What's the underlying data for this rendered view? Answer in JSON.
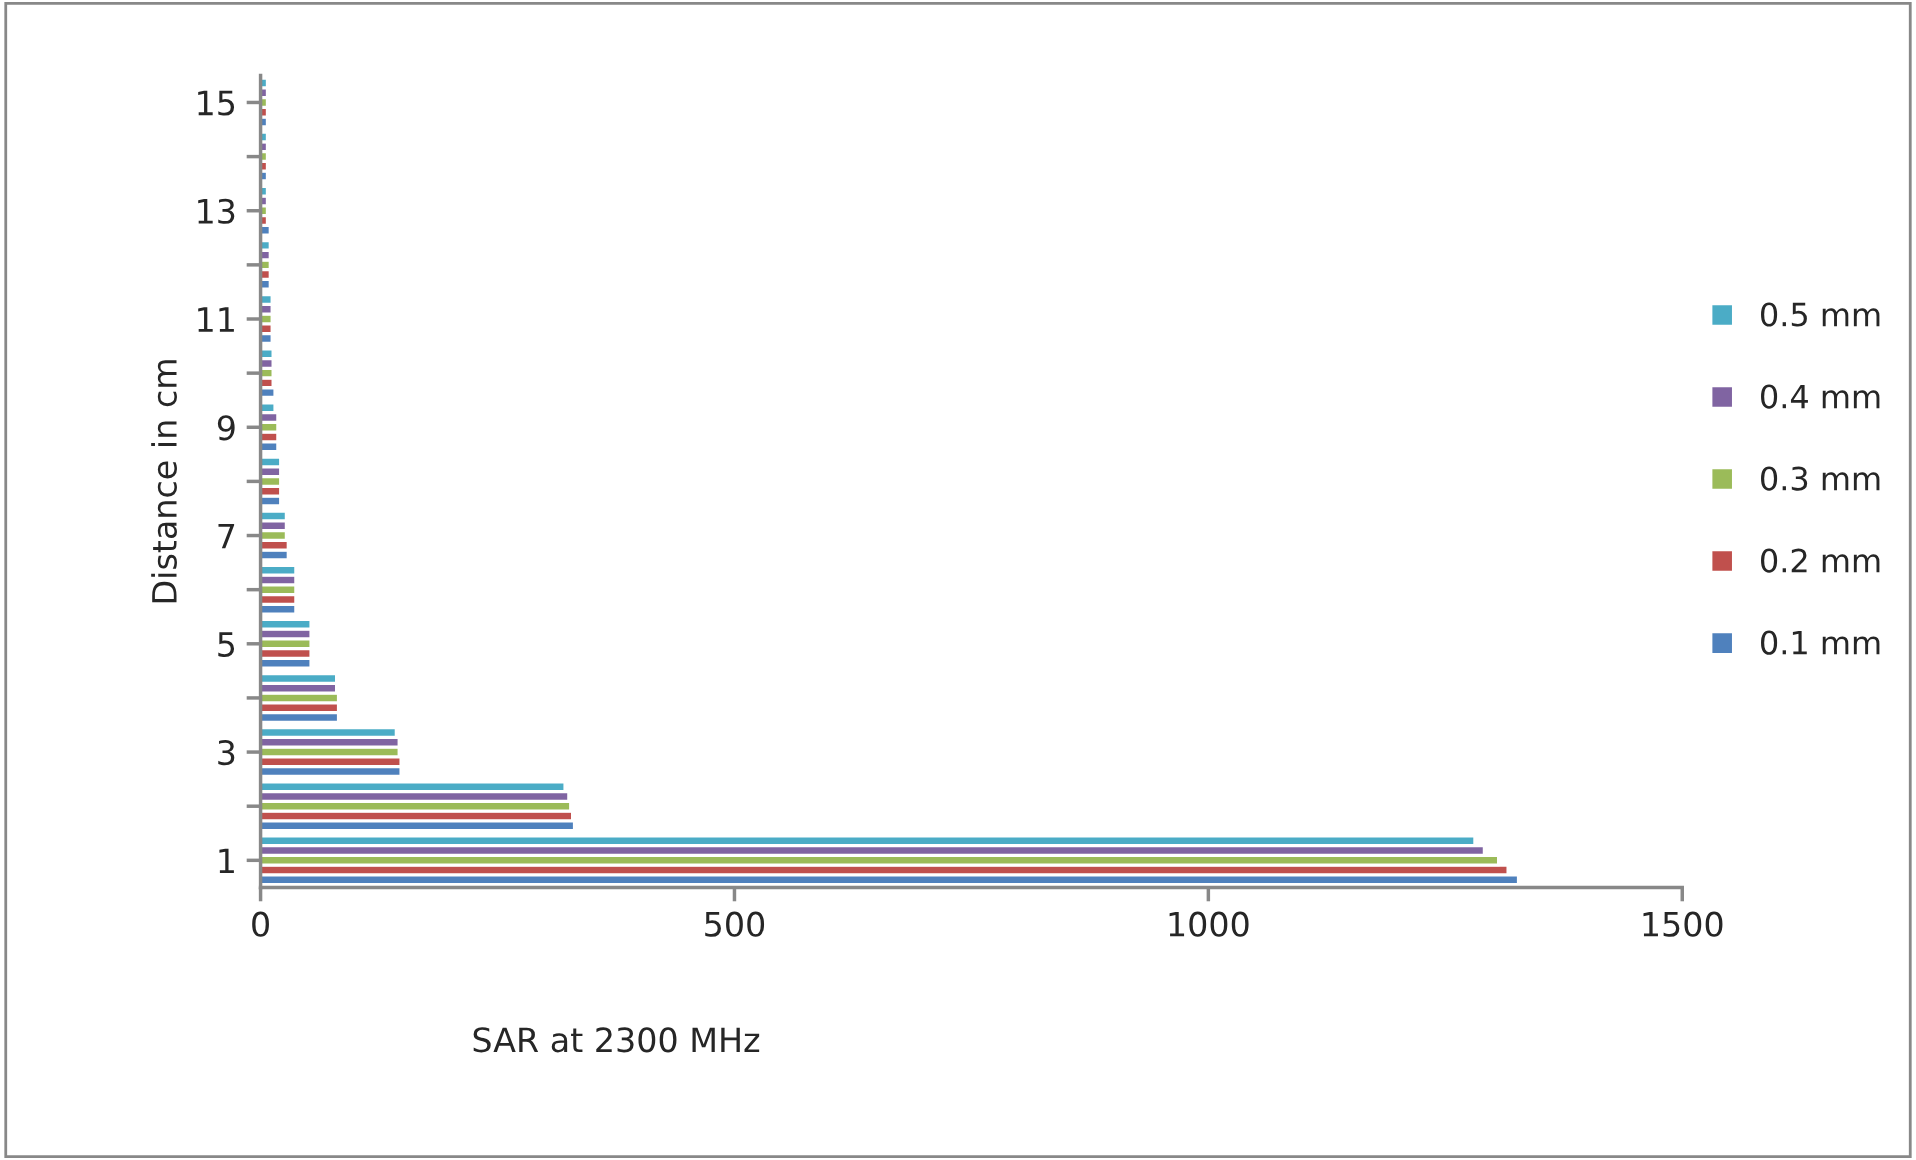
{
  "chart_data": {
    "type": "bar",
    "orientation": "horizontal",
    "xlabel": "SAR at 2300 MHz",
    "ylabel": "Distance in cm",
    "categories": [
      "15",
      null,
      "13",
      null,
      "11",
      null,
      "9",
      null,
      "7",
      null,
      "5",
      null,
      "3",
      null,
      "1"
    ],
    "series": [
      {
        "name": "0.1 mm",
        "color": "#4f81bd",
        "values": [
          7,
          7,
          10,
          10,
          12,
          15,
          18,
          21,
          29,
          37,
          53,
          82,
          148,
          331,
          1327
        ]
      },
      {
        "name": "0.2 mm",
        "color": "#c0504d",
        "values": [
          7,
          7,
          7,
          10,
          12,
          13,
          18,
          21,
          29,
          37,
          53,
          82,
          148,
          329,
          1316
        ]
      },
      {
        "name": "0.3 mm",
        "color": "#9bbb59",
        "values": [
          7,
          7,
          7,
          10,
          12,
          13,
          18,
          21,
          27,
          37,
          53,
          82,
          146,
          327,
          1306
        ]
      },
      {
        "name": "0.4 mm",
        "color": "#8064a2",
        "values": [
          7,
          7,
          7,
          10,
          12,
          13,
          18,
          21,
          27,
          37,
          53,
          80,
          146,
          325,
          1291
        ]
      },
      {
        "name": "0.5 mm",
        "color": "#4bacc6",
        "values": [
          7,
          7,
          7,
          10,
          12,
          13,
          15,
          21,
          27,
          37,
          53,
          80,
          143,
          321,
          1281
        ]
      }
    ],
    "xlim": [
      0,
      1500
    ],
    "xticks": [
      0,
      500,
      1000,
      1500
    ],
    "grid": false,
    "legend": "right"
  }
}
